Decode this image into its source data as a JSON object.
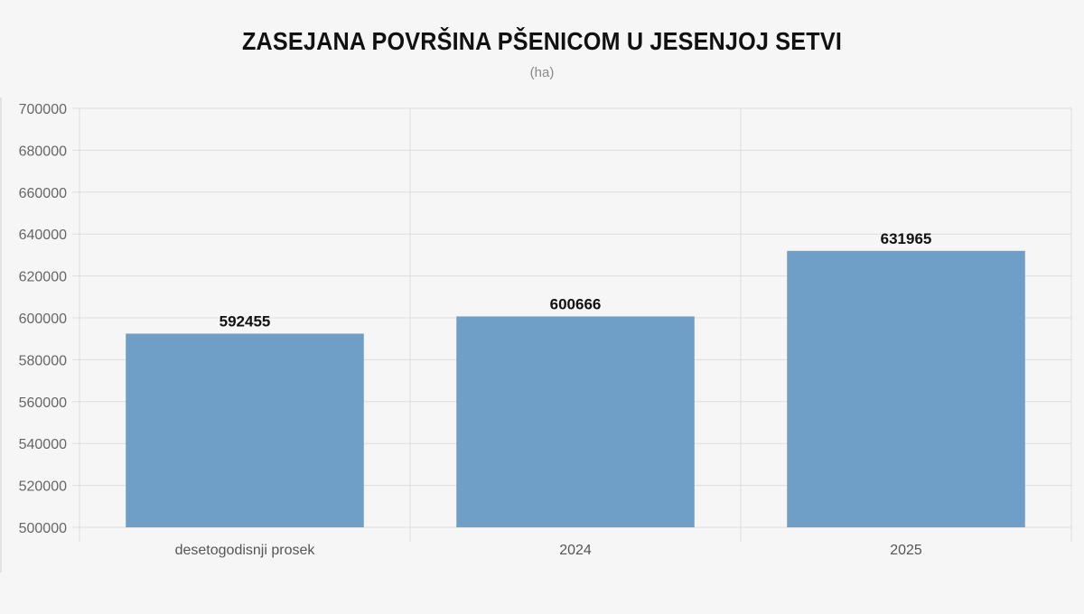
{
  "chart_data": {
    "type": "bar",
    "title": "ZASEJANA POVRŠINA PŠENICOM U JESENJOJ SETVI",
    "subtitle": "(ha)",
    "xlabel": "",
    "ylabel": "",
    "categories": [
      "desetogodisnji prosek",
      "2024",
      "2025"
    ],
    "values": [
      592455,
      600666,
      631965
    ],
    "value_labels": [
      "592455",
      "600666",
      "631965"
    ],
    "ylim": [
      500000,
      700000
    ],
    "yticks": [
      500000,
      520000,
      540000,
      560000,
      580000,
      600000,
      620000,
      640000,
      660000,
      680000,
      700000
    ],
    "ytick_labels": [
      "500000",
      "520000",
      "540000",
      "560000",
      "580000",
      "600000",
      "620000",
      "640000",
      "660000",
      "680000",
      "700000"
    ],
    "grid": true,
    "legend": "none",
    "bar_color": "#6f9ec7"
  }
}
